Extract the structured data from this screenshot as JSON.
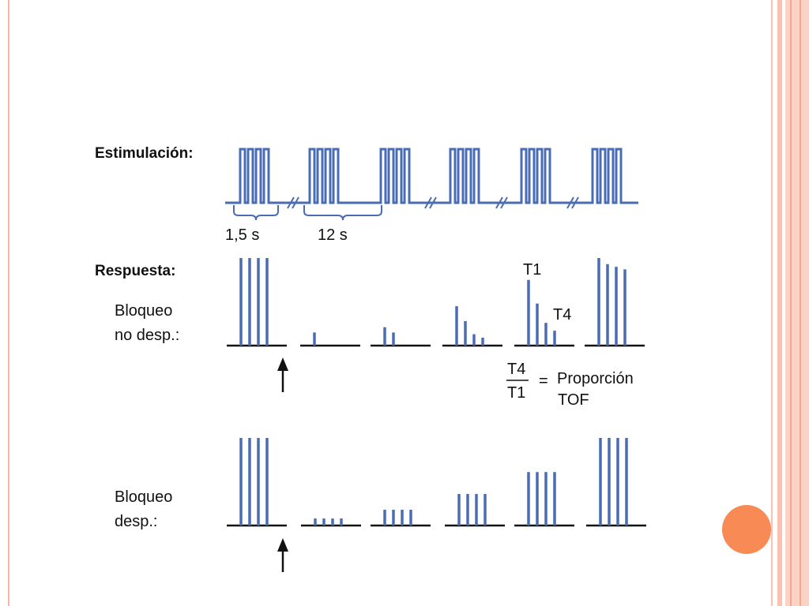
{
  "labels": {
    "stimulation": "Estimulación:",
    "duration_train": "1,5 s",
    "duration_interval": "12 s",
    "response": "Respuesta:",
    "nondep_line1": "Bloqueo",
    "nondep_line2": "no desp.:",
    "t1": "T1",
    "t4": "T4",
    "ratio_num": "T4",
    "ratio_den": "T1",
    "ratio_eq": "=",
    "ratio_line1": "Proporción",
    "ratio_line2": "TOF",
    "dep_line1": "Bloqueo",
    "dep_line2": "desp.:"
  },
  "stimulation": {
    "trains": 6,
    "pulses_per_train": 4,
    "break_marks": 4
  },
  "nondepolarizing_response": [
    [
      1,
      1,
      1,
      1
    ],
    [
      0.15
    ],
    [
      0.21,
      0.15
    ],
    [
      0.45,
      0.28,
      0.13,
      0.09
    ],
    [
      0.75,
      0.48,
      0.26,
      0.17
    ],
    [
      1,
      0.93,
      0.9,
      0.87
    ]
  ],
  "depolarizing_response": [
    [
      1,
      1,
      1,
      1
    ],
    [
      0.08,
      0.08,
      0.08,
      0.08
    ],
    [
      0.18,
      0.18,
      0.18,
      0.18
    ],
    [
      0.36,
      0.36,
      0.36,
      0.36
    ],
    [
      0.61,
      0.61,
      0.61,
      0.61
    ],
    [
      1,
      1,
      1,
      1
    ]
  ],
  "colors": {
    "trace": "#4a6cb3",
    "accent": "#f78a55",
    "frame": "#f9c2b1"
  }
}
